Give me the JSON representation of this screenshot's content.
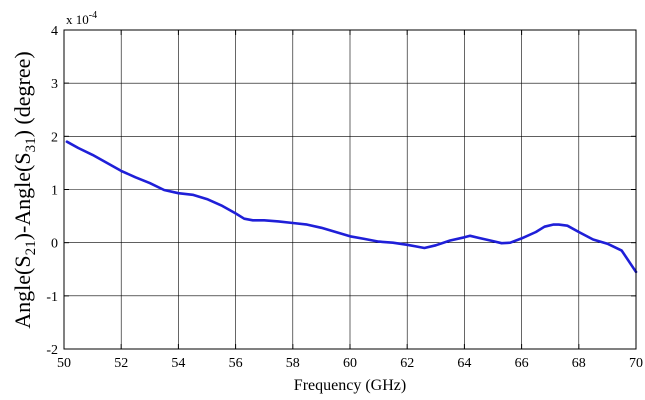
{
  "chart_data": {
    "type": "line",
    "title": "",
    "xlabel": "Frequency (GHz)",
    "ylabel": {
      "part1": "Angle(S",
      "sub1": "21",
      "part2": ")-Angle(S",
      "sub2": "31",
      "part3": ") (degree)"
    },
    "y_multiplier": {
      "base": "x 10",
      "exponent": "-4"
    },
    "xlim": [
      50,
      70
    ],
    "ylim": [
      -2,
      4
    ],
    "x_ticks": [
      50,
      52,
      54,
      56,
      58,
      60,
      62,
      64,
      66,
      68,
      70
    ],
    "y_ticks": [
      -2,
      -1,
      0,
      1,
      2,
      3,
      4
    ],
    "grid": true,
    "line_color": "#1f1fd8",
    "series": [
      {
        "x": [
          50.1,
          50.5,
          51.0,
          51.5,
          52.0,
          52.5,
          53.0,
          53.5,
          54.0,
          54.5,
          55.0,
          55.5,
          56.0,
          56.3,
          56.6,
          57.0,
          57.5,
          58.0,
          58.5,
          59.0,
          59.5,
          60.0,
          60.5,
          61.0,
          61.5,
          62.0,
          62.3,
          62.6,
          63.0,
          63.5,
          64.0,
          64.2,
          64.5,
          65.0,
          65.3,
          65.6,
          66.0,
          66.5,
          66.8,
          67.1,
          67.3,
          67.6,
          68.0,
          68.5,
          69.0,
          69.5,
          70.0
        ],
        "y": [
          1.9,
          1.78,
          1.65,
          1.5,
          1.35,
          1.23,
          1.12,
          0.99,
          0.93,
          0.9,
          0.82,
          0.7,
          0.55,
          0.45,
          0.42,
          0.42,
          0.4,
          0.37,
          0.34,
          0.28,
          0.2,
          0.12,
          0.07,
          0.02,
          0.0,
          -0.04,
          -0.07,
          -0.1,
          -0.05,
          0.04,
          0.1,
          0.13,
          0.09,
          0.03,
          -0.01,
          0.0,
          0.08,
          0.2,
          0.3,
          0.34,
          0.34,
          0.32,
          0.2,
          0.06,
          -0.02,
          -0.15,
          -0.55
        ]
      }
    ]
  }
}
